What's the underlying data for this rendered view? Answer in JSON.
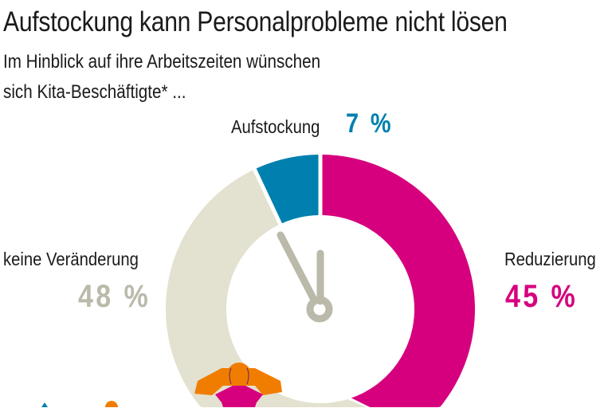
{
  "title": "Aufstockung kann Personalprobleme nicht lösen",
  "subtitle_line1": "Im Hinblick auf ihre Arbeitszeiten wünschen",
  "subtitle_line2": "sich Kita-Beschäftigte* ...",
  "chart_data": {
    "type": "pie",
    "variant": "donut",
    "slices": [
      {
        "label": "Reduzierung",
        "value": 45,
        "value_label": "45 %",
        "color": "#d6007e"
      },
      {
        "label": "keine Veränderung",
        "value": 48,
        "value_label": "48 %",
        "color": "#e3e1cf"
      },
      {
        "label": "Aufstockung",
        "value": 7,
        "value_label": "7 %",
        "color": "#0080ae"
      }
    ],
    "start": "top",
    "direction": "clockwise",
    "center_icon": "clock-hands-icon"
  },
  "colors": {
    "clock_hands": "#bbb9a9",
    "percent_gray": "#bbb9a9",
    "figure_orange": "#f07d00",
    "figure_magenta": "#d6007e"
  }
}
